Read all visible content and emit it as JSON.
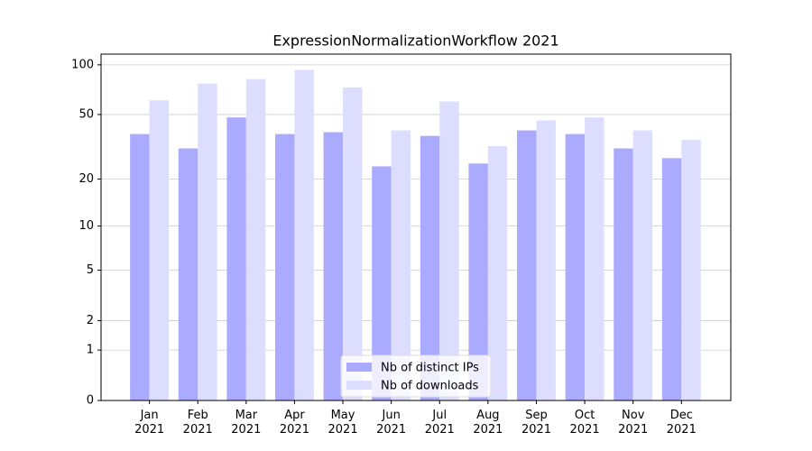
{
  "chart_data": {
    "type": "bar",
    "title": "ExpressionNormalizationWorkflow 2021",
    "categories": [
      "Jan\n2021",
      "Feb\n2021",
      "Mar\n2021",
      "Apr\n2021",
      "May\n2021",
      "Jun\n2021",
      "Jul\n2021",
      "Aug\n2021",
      "Sep\n2021",
      "Oct\n2021",
      "Nov\n2021",
      "Dec\n2021"
    ],
    "series": [
      {
        "name": "Nb of distinct IPs",
        "color": "#aaaaff",
        "values": [
          38,
          31,
          48,
          38,
          39,
          24,
          37,
          25,
          40,
          38,
          31,
          27
        ]
      },
      {
        "name": "Nb of downloads",
        "color": "#ddddff",
        "values": [
          61,
          77,
          82,
          93,
          73,
          40,
          60,
          32,
          46,
          48,
          40,
          35
        ]
      }
    ],
    "scale": "log1p",
    "ylim": [
      0,
      116
    ],
    "yticks": [
      0,
      1,
      2,
      5,
      10,
      20,
      50,
      100
    ],
    "grid": true,
    "legend": "lower center"
  }
}
